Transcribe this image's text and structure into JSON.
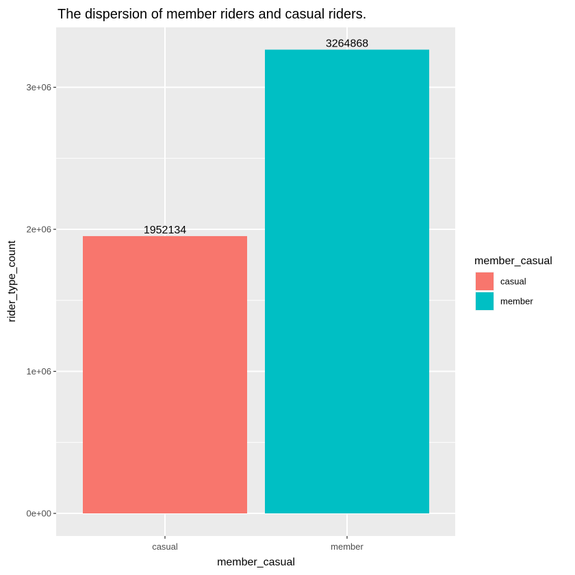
{
  "chart_data": {
    "type": "bar",
    "title": "The dispersion of member riders and casual riders.",
    "xlabel": "member_casual",
    "ylabel": "rider_type_count",
    "categories": [
      "casual",
      "member"
    ],
    "values": [
      1952134,
      3264868
    ],
    "data_labels": [
      "1952134",
      "3264868"
    ],
    "colors": [
      "#F8766D",
      "#00BFC4"
    ],
    "ylim": [
      0,
      3400000
    ],
    "y_ticks": [
      0,
      1000000,
      2000000,
      3000000
    ],
    "y_tick_labels": [
      "0e+00",
      "1e+06",
      "2e+06",
      "3e+06"
    ],
    "grid": true,
    "legend": {
      "title": "member_casual",
      "placement": "right",
      "items": [
        "casual",
        "member"
      ]
    }
  }
}
